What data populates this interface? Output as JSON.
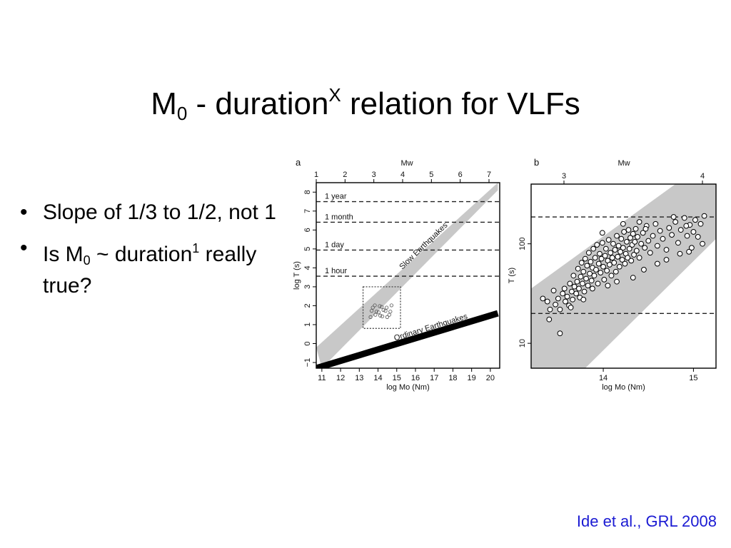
{
  "slide": {
    "title_main": "M",
    "title_sub": "0",
    "title_mid": " - duration",
    "title_sup": "X",
    "title_end": " relation for VLFs",
    "bullets": [
      {
        "a": "Slope of 1/3 to 1/2, not 1"
      },
      {
        "a": "Is M",
        "sub": "0",
        "b": " ~ duration",
        "sup": "1",
        "c": " really true?"
      }
    ],
    "citation": "Ide et al., GRL 2008"
  },
  "chart_data": [
    {
      "panel": "a",
      "type": "line",
      "top_axis_label": "Mw",
      "top_ticks": [
        "1",
        "2",
        "3",
        "4",
        "5",
        "6",
        "7"
      ],
      "xlabel": "log Mo (Nm)",
      "ylabel": "log T (s)",
      "xlim": [
        10.7,
        20.5
      ],
      "ylim": [
        -1.3,
        8.5
      ],
      "x_ticks": [
        "11",
        "12",
        "13",
        "14",
        "15",
        "16",
        "17",
        "18",
        "19",
        "20"
      ],
      "y_ticks": [
        "-1",
        "0",
        "1",
        "2",
        "3",
        "4",
        "5",
        "6",
        "7",
        "8"
      ],
      "reference_lines": [
        {
          "label": "1 year",
          "y": 7.5
        },
        {
          "label": "1 month",
          "y": 6.41
        },
        {
          "label": "1 day",
          "y": 4.94
        },
        {
          "label": "1 hour",
          "y": 3.56
        }
      ],
      "band": {
        "label": "Slow Earthquakes",
        "lower": [
          [
            11,
            -1.3
          ],
          [
            20.4,
            8.1
          ]
        ],
        "upper": [
          [
            10.7,
            -0.2
          ],
          [
            20.4,
            8.5
          ]
        ]
      },
      "line": {
        "label": "Ordinary Earthquakes",
        "points": [
          [
            10.7,
            -1.3
          ],
          [
            20.4,
            1.6
          ]
        ]
      },
      "box": {
        "x": [
          13.2,
          15.2
        ],
        "y": [
          0.8,
          3.0
        ]
      }
    },
    {
      "panel": "b",
      "type": "scatter",
      "top_axis_label": "Mw",
      "top_ticks": [
        "3",
        "4"
      ],
      "xlabel": "log Mo (Nm)",
      "ylabel": "T (s)",
      "xlim": [
        13.2,
        15.25
      ],
      "ylim": [
        0.75,
        2.6
      ],
      "x_ticks": [
        "14",
        "15"
      ],
      "y_ticks": [
        "10",
        "100"
      ],
      "reference_lines": [
        {
          "y": 2.27
        },
        {
          "y": 1.3
        }
      ],
      "points": [
        [
          13.33,
          1.45
        ],
        [
          13.38,
          1.42
        ],
        [
          13.41,
          1.34
        ],
        [
          13.45,
          1.53
        ],
        [
          13.47,
          1.39
        ],
        [
          13.5,
          1.45
        ],
        [
          13.52,
          1.34
        ],
        [
          13.55,
          1.5
        ],
        [
          13.57,
          1.55
        ],
        [
          13.58,
          1.42
        ],
        [
          13.6,
          1.47
        ],
        [
          13.62,
          1.38
        ],
        [
          13.63,
          1.6
        ],
        [
          13.65,
          1.52
        ],
        [
          13.66,
          1.44
        ],
        [
          13.67,
          1.68
        ],
        [
          13.68,
          1.57
        ],
        [
          13.7,
          1.5
        ],
        [
          13.71,
          1.62
        ],
        [
          13.72,
          1.75
        ],
        [
          13.73,
          1.55
        ],
        [
          13.74,
          1.46
        ],
        [
          13.75,
          1.67
        ],
        [
          13.76,
          1.81
        ],
        [
          13.77,
          1.6
        ],
        [
          13.78,
          1.72
        ],
        [
          13.79,
          1.52
        ],
        [
          13.8,
          1.85
        ],
        [
          13.81,
          1.65
        ],
        [
          13.82,
          1.78
        ],
        [
          13.83,
          1.58
        ],
        [
          13.84,
          1.91
        ],
        [
          13.85,
          1.7
        ],
        [
          13.86,
          1.82
        ],
        [
          13.87,
          1.63
        ],
        [
          13.88,
          1.76
        ],
        [
          13.89,
          1.95
        ],
        [
          13.9,
          1.68
        ],
        [
          13.91,
          1.86
        ],
        [
          13.92,
          1.74
        ],
        [
          13.93,
          1.99
        ],
        [
          13.94,
          1.6
        ],
        [
          13.95,
          1.8
        ],
        [
          13.96,
          1.9
        ],
        [
          13.97,
          1.71
        ],
        [
          13.98,
          1.85
        ],
        [
          13.99,
          2.01
        ],
        [
          14.0,
          1.77
        ],
        [
          14.01,
          1.64
        ],
        [
          14.02,
          1.88
        ],
        [
          14.03,
          1.95
        ],
        [
          14.04,
          1.73
        ],
        [
          14.05,
          1.83
        ],
        [
          14.06,
          2.04
        ],
        [
          14.07,
          1.79
        ],
        [
          14.08,
          1.91
        ],
        [
          14.09,
          1.68
        ],
        [
          14.1,
          1.86
        ],
        [
          14.11,
          2.0
        ],
        [
          14.12,
          1.81
        ],
        [
          14.13,
          1.94
        ],
        [
          14.14,
          1.72
        ],
        [
          14.15,
          2.08
        ],
        [
          14.16,
          1.87
        ],
        [
          14.17,
          1.98
        ],
        [
          14.18,
          1.77
        ],
        [
          14.19,
          1.92
        ],
        [
          14.2,
          2.05
        ],
        [
          14.21,
          1.84
        ],
        [
          14.22,
          1.96
        ],
        [
          14.23,
          2.12
        ],
        [
          14.24,
          1.8
        ],
        [
          14.25,
          1.9
        ],
        [
          14.26,
          2.02
        ],
        [
          14.27,
          1.86
        ],
        [
          14.28,
          2.14
        ],
        [
          14.29,
          1.95
        ],
        [
          14.3,
          2.06
        ],
        [
          14.31,
          1.83
        ],
        [
          14.32,
          1.99
        ],
        [
          14.33,
          2.1
        ],
        [
          14.34,
          1.89
        ],
        [
          14.35,
          2.02
        ],
        [
          14.36,
          2.15
        ],
        [
          14.37,
          1.93
        ],
        [
          14.38,
          2.07
        ],
        [
          14.4,
          1.86
        ],
        [
          14.42,
          2.0
        ],
        [
          14.44,
          2.11
        ],
        [
          14.46,
          1.96
        ],
        [
          14.48,
          2.18
        ],
        [
          14.5,
          2.03
        ],
        [
          14.52,
          1.91
        ],
        [
          14.55,
          2.08
        ],
        [
          14.58,
          2.2
        ],
        [
          14.6,
          1.98
        ],
        [
          14.63,
          2.13
        ],
        [
          14.66,
          2.05
        ],
        [
          14.7,
          1.94
        ],
        [
          14.73,
          2.16
        ],
        [
          14.76,
          2.09
        ],
        [
          14.8,
          2.22
        ],
        [
          14.83,
          2.01
        ],
        [
          14.86,
          2.14
        ],
        [
          14.9,
          2.26
        ],
        [
          14.93,
          2.08
        ],
        [
          14.96,
          2.19
        ],
        [
          14.98,
          1.96
        ],
        [
          15.0,
          2.12
        ],
        [
          15.02,
          2.24
        ],
        [
          15.05,
          2.07
        ],
        [
          15.08,
          2.2
        ],
        [
          15.12,
          2.28
        ],
        [
          13.4,
          1.24
        ],
        [
          13.64,
          1.36
        ],
        [
          13.88,
          1.55
        ],
        [
          14.15,
          1.62
        ],
        [
          14.45,
          1.74
        ],
        [
          14.7,
          1.84
        ],
        [
          14.95,
          1.92
        ],
        [
          13.52,
          1.1
        ],
        [
          13.78,
          1.44
        ],
        [
          14.05,
          1.58
        ],
        [
          14.33,
          1.66
        ],
        [
          14.6,
          1.8
        ],
        [
          14.85,
          1.9
        ],
        [
          15.1,
          2.0
        ],
        [
          14.22,
          2.2
        ],
        [
          14.4,
          2.22
        ],
        [
          14.78,
          2.27
        ],
        [
          13.99,
          2.11
        ],
        [
          14.47,
          2.15
        ],
        [
          14.92,
          2.18
        ]
      ]
    }
  ]
}
